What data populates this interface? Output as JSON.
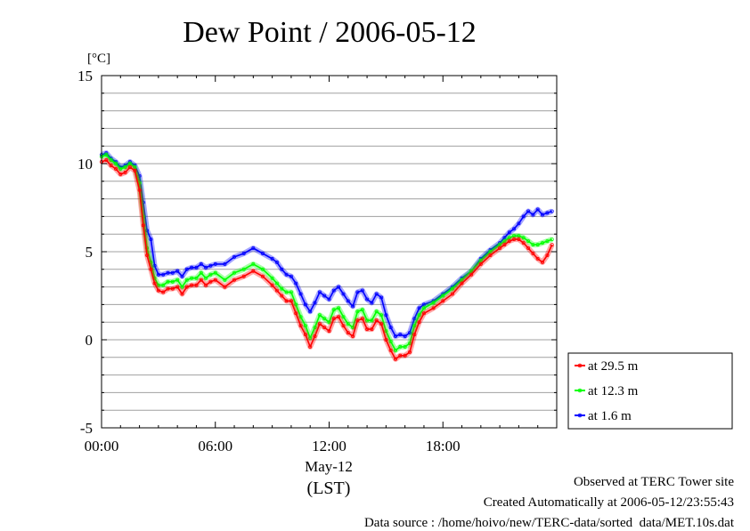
{
  "chart_data": {
    "type": "line",
    "title": "Dew Point / 2006-05-12",
    "ylabel": "[°C]",
    "xlabel": "(LST)",
    "date_label": "May-12",
    "ylim": [
      -5,
      15
    ],
    "xlim": [
      0,
      24
    ],
    "y_ticks": [
      -5,
      0,
      5,
      10,
      15
    ],
    "y_tick_labels": [
      "-5",
      "0",
      "5",
      "10",
      "15"
    ],
    "x_ticks": [
      0,
      6,
      12,
      18
    ],
    "x_tick_labels": [
      "00:00",
      "06:00",
      "12:00",
      "18:00"
    ],
    "grid": true,
    "legend_position": "bottom-right, outside plot",
    "series": [
      {
        "name": "at 29.5 m",
        "color": "#ff0000",
        "x": [
          0,
          0.25,
          0.5,
          0.75,
          1,
          1.25,
          1.5,
          1.75,
          2,
          2.2,
          2.4,
          2.6,
          2.8,
          3,
          3.25,
          3.5,
          3.75,
          4,
          4.25,
          4.5,
          4.75,
          5,
          5.25,
          5.5,
          5.75,
          6,
          6.5,
          7,
          7.5,
          8,
          8.5,
          9,
          9.25,
          9.5,
          9.75,
          10,
          10.25,
          10.5,
          10.75,
          11,
          11.25,
          11.5,
          11.75,
          12,
          12.25,
          12.5,
          12.75,
          13,
          13.25,
          13.5,
          13.75,
          14,
          14.25,
          14.5,
          14.75,
          15,
          15.25,
          15.5,
          15.75,
          16,
          16.25,
          16.5,
          16.75,
          17,
          17.5,
          18,
          18.5,
          19,
          19.5,
          20,
          20.5,
          21,
          21.25,
          21.5,
          21.75,
          22,
          22.25,
          22.5,
          22.75,
          23,
          23.25,
          23.5,
          23.75
        ],
        "values": [
          10.1,
          10.2,
          9.9,
          9.7,
          9.4,
          9.5,
          9.8,
          9.6,
          8.5,
          6.5,
          4.8,
          4.0,
          3.2,
          2.8,
          2.7,
          2.9,
          2.9,
          3.0,
          2.6,
          3.0,
          3.1,
          3.1,
          3.4,
          3.1,
          3.3,
          3.4,
          3.0,
          3.4,
          3.6,
          3.9,
          3.6,
          3.1,
          2.8,
          2.5,
          2.2,
          2.2,
          1.5,
          0.8,
          0.3,
          -0.4,
          0.2,
          0.9,
          0.7,
          0.5,
          1.2,
          1.3,
          0.8,
          0.4,
          0.2,
          1.1,
          1.2,
          0.6,
          0.6,
          1.1,
          0.9,
          0.0,
          -0.6,
          -1.1,
          -0.9,
          -0.9,
          -0.7,
          0.3,
          1.0,
          1.5,
          1.8,
          2.2,
          2.6,
          3.2,
          3.7,
          4.3,
          4.8,
          5.2,
          5.4,
          5.6,
          5.7,
          5.7,
          5.5,
          5.2,
          4.9,
          4.6,
          4.4,
          4.8,
          5.4
        ]
      },
      {
        "name": "at 12.3 m",
        "color": "#00ff00",
        "x": [
          0,
          0.25,
          0.5,
          0.75,
          1,
          1.25,
          1.5,
          1.75,
          2,
          2.2,
          2.4,
          2.6,
          2.8,
          3,
          3.25,
          3.5,
          3.75,
          4,
          4.25,
          4.5,
          4.75,
          5,
          5.25,
          5.5,
          5.75,
          6,
          6.5,
          7,
          7.5,
          8,
          8.5,
          9,
          9.25,
          9.5,
          9.75,
          10,
          10.25,
          10.5,
          10.75,
          11,
          11.25,
          11.5,
          11.75,
          12,
          12.25,
          12.5,
          12.75,
          13,
          13.25,
          13.5,
          13.75,
          14,
          14.25,
          14.5,
          14.75,
          15,
          15.25,
          15.5,
          15.75,
          16,
          16.25,
          16.5,
          16.75,
          17,
          17.5,
          18,
          18.5,
          19,
          19.5,
          20,
          20.5,
          21,
          21.25,
          21.5,
          21.75,
          22,
          22.25,
          22.5,
          22.75,
          23,
          23.25,
          23.5,
          23.75
        ],
        "values": [
          10.4,
          10.5,
          10.2,
          10.0,
          9.7,
          9.8,
          10.0,
          9.8,
          8.9,
          7.0,
          5.2,
          4.4,
          3.5,
          3.1,
          3.1,
          3.3,
          3.3,
          3.4,
          3.0,
          3.4,
          3.5,
          3.5,
          3.8,
          3.5,
          3.7,
          3.8,
          3.4,
          3.8,
          4.0,
          4.3,
          4.0,
          3.5,
          3.2,
          2.9,
          2.7,
          2.7,
          2.0,
          1.3,
          0.8,
          0.1,
          0.7,
          1.4,
          1.2,
          1.0,
          1.7,
          1.8,
          1.3,
          0.9,
          0.7,
          1.6,
          1.7,
          1.1,
          1.1,
          1.6,
          1.4,
          0.5,
          -0.1,
          -0.6,
          -0.4,
          -0.4,
          -0.2,
          0.8,
          1.4,
          1.8,
          2.1,
          2.5,
          2.9,
          3.4,
          3.9,
          4.5,
          5.0,
          5.4,
          5.6,
          5.8,
          5.9,
          5.9,
          5.8,
          5.6,
          5.4,
          5.4,
          5.5,
          5.6,
          5.7
        ]
      },
      {
        "name": "at 1.6 m",
        "color": "#0000ff",
        "x": [
          0,
          0.25,
          0.5,
          0.75,
          1,
          1.25,
          1.5,
          1.75,
          2,
          2.2,
          2.4,
          2.6,
          2.8,
          3,
          3.25,
          3.5,
          3.75,
          4,
          4.25,
          4.5,
          4.75,
          5,
          5.25,
          5.5,
          5.75,
          6,
          6.5,
          7,
          7.5,
          8,
          8.5,
          9,
          9.25,
          9.5,
          9.75,
          10,
          10.25,
          10.5,
          10.75,
          11,
          11.25,
          11.5,
          11.75,
          12,
          12.25,
          12.5,
          12.75,
          13,
          13.25,
          13.5,
          13.75,
          14,
          14.25,
          14.5,
          14.75,
          15,
          15.25,
          15.5,
          15.75,
          16,
          16.25,
          16.5,
          16.75,
          17,
          17.5,
          18,
          18.5,
          19,
          19.5,
          20,
          20.5,
          21,
          21.25,
          21.5,
          21.75,
          22,
          22.25,
          22.5,
          22.75,
          23,
          23.25,
          23.5,
          23.75
        ],
        "values": [
          10.5,
          10.6,
          10.3,
          10.1,
          9.8,
          9.9,
          10.1,
          9.9,
          9.3,
          7.8,
          6.2,
          5.7,
          4.2,
          3.7,
          3.7,
          3.8,
          3.8,
          3.9,
          3.6,
          4.0,
          4.1,
          4.1,
          4.3,
          4.1,
          4.2,
          4.3,
          4.3,
          4.7,
          4.9,
          5.2,
          4.9,
          4.6,
          4.4,
          4.0,
          3.7,
          3.6,
          3.2,
          2.6,
          2.0,
          1.6,
          2.1,
          2.7,
          2.5,
          2.3,
          2.8,
          3.0,
          2.6,
          2.2,
          1.9,
          2.7,
          2.8,
          2.3,
          2.1,
          2.6,
          2.4,
          1.4,
          0.7,
          0.2,
          0.3,
          0.2,
          0.4,
          1.2,
          1.8,
          2.0,
          2.2,
          2.6,
          3.0,
          3.5,
          3.9,
          4.6,
          5.1,
          5.5,
          5.8,
          6.1,
          6.3,
          6.6,
          7.0,
          7.3,
          7.1,
          7.4,
          7.1,
          7.2,
          7.3
        ]
      }
    ]
  },
  "info": {
    "line1": "Observed at TERC Tower site",
    "line2": "Created Automatically at 2006-05-12/23:55:43",
    "line3": "Data source : /home/hoivo/new/TERC-data/sorted  data/MET.10s.dat"
  }
}
